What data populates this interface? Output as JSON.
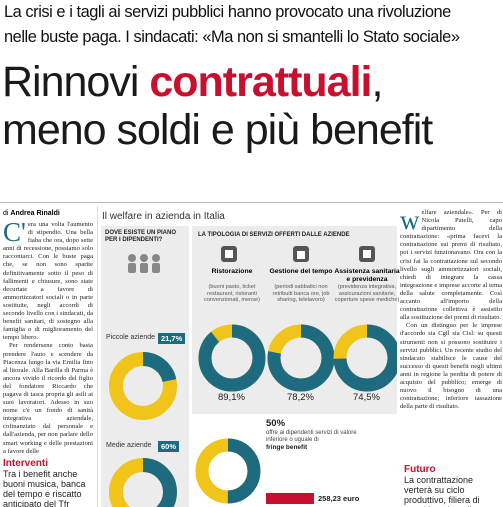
{
  "deck": [
    "La crisi e i tagli ai servizi pubblici hanno provocato una rivoluzione",
    "nelle buste paga. I sindacati: «Ma non si smantelli lo Stato sociale»"
  ],
  "headline": {
    "line1_start": "Rinnovi",
    "line1_accent": "contrattuali",
    "line1_end": ",",
    "line2": "meno soldi e più benefit"
  },
  "byline": {
    "prefix": "di",
    "author": "Andrea Rinaldi"
  },
  "article_left": [
    "C'era una volta l'aumento di stipendio. Una bella fiaba che ora, dopo sette anni di recessione, possiamo solo raccontarci. Con le buste paga che, se non sono sparite definitivamente sotto il peso di fallimenti e chiusure, sono state decurtate a favore di ammortizzatori sociali o in parte sostituite, negli accordi di secondo livello con i sindacati, da benefit sanitari, di sostegno alla famiglia o di miglioramento del tempo libero.",
    "Per rendersene conto basta prendere l'auto e scendere da Piacenza lungo la via Emilia fino al litorale. Alla Barilla di Parma è ancora vivido il ricordo del figlio del fondatore Riccardo che pagava di tasca propria gli asili ai suoi lavoratori. Adesso in suo nome c'è un fondo di sanità integrativa aziendale, cofinanziato dal personale e dall'azienda, per non parlare dello smart working e delle prestazioni a favore delle"
  ],
  "sidebar_left": {
    "title": "Interventi",
    "text": "Tra i benefit anche buoni musica, banca del tempo e riscatto anticipato del Tfr"
  },
  "infographic": {
    "title": "Il welfare in azienda in Italia",
    "plan": {
      "header": "DOVE ESISTE UN PIANO PER I DIPENDENTI?",
      "items": [
        {
          "label": "Piccole aziende",
          "value": 21.7,
          "value_label": "21,7%"
        },
        {
          "label": "Medie aziende",
          "value": 60,
          "value_label": "60%"
        }
      ]
    },
    "services": {
      "header": "LA TIPOLOGIA DI SERVIZI OFFERTI DALLE AZIENDE",
      "items": [
        {
          "name": "Ristorazione",
          "detail": "(buoni pasto, ticket restaurant, ristoranti convenzionati, mense)",
          "value": 89.1,
          "value_label": "89,1%"
        },
        {
          "name": "Gestione del tempo",
          "detail": "(periodi sabbatici non retribuiti banca ore, job sharing, telelavoro)",
          "value": 78.2,
          "value_label": "78,2%"
        },
        {
          "name": "Assistenza sanitaria e previdenza",
          "detail": "(previdenza integrativa, assicurazioni sanitarie, coperture spese mediche)",
          "value": 74.5,
          "value_label": "74,5%"
        }
      ]
    },
    "fringe": {
      "value": 50,
      "value_label": "50%",
      "text": "offre ai dipendenti servizi di valore inferiore o uguale di",
      "text_bold": "fringe benefit",
      "amount": 258.23,
      "amount_label": "258,23 euro"
    }
  },
  "article_right": [
    "welfare aziendale». Per di Nicola Patelli, capo dipartimento della contrattazione: «prima facevi la contrattazione sui premi di risultato, poi i servizi funzionavano. Ora con la crisi fai la contrattazione sul secondo livello sugli ammortizzatori sociali, chiedi di integrare la cassa integrazione e imprese accorte al tema della salute completamente. Così accanto all'importo della contrattazione collettiva è assistito alla sostituzione dei premi di risultato.",
    "Con un distinguo per le imprese d'accordo sia Cgil sia Cisl: su questi strumenti non si possono sostituire i servizi pubblici. Un recente studio del sindacato stabilisce le cause del successo di questi benefit negli ultimi anni in regione la perdita di potere di acquisto del pubblico; emerge di nuovo il bisogno di una contrattazione; inferiore tassazione della parte di risultato."
  ],
  "sidebar_right": {
    "title": "Futuro",
    "text": "La contrattazione verterà su ciclo produttivo, filiera di appalti e stipendi"
  }
}
